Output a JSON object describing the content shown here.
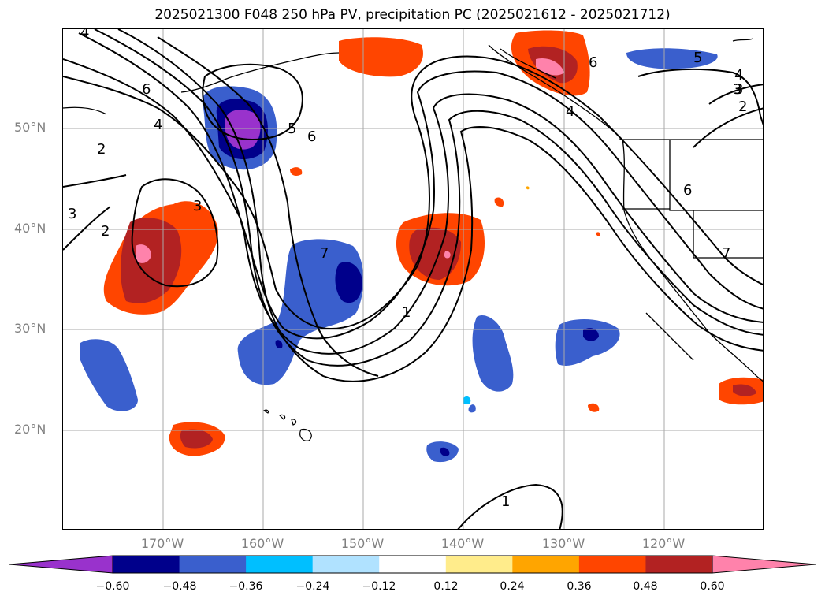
{
  "title": "2025021300 F048 250 hPa PV, precipitation PC (2025021612 - 2025021712)",
  "lat_labels": [
    "50°N",
    "40°N",
    "30°N",
    "20°N"
  ],
  "lon_labels": [
    "170°W",
    "160°W",
    "150°W",
    "140°W",
    "130°W",
    "120°W"
  ],
  "colorbar": {
    "ticks": [
      "−0.60",
      "−0.48",
      "−0.36",
      "−0.24",
      "−0.12",
      "0.12",
      "0.24",
      "0.36",
      "0.48",
      "0.60"
    ],
    "colors": [
      "#9932cc",
      "#00008b",
      "#3a5fcd",
      "#00bfff",
      "#b0e2ff",
      "#ffffff",
      "#ffec8b",
      "#ffa500",
      "#ff4500",
      "#b22222",
      "#ff82ab"
    ]
  },
  "contour_labels": [
    "4",
    "6",
    "4",
    "2",
    "3",
    "2",
    "3",
    "5",
    "6",
    "7",
    "1",
    "4",
    "3",
    "6",
    "5",
    "4",
    "3",
    "2",
    "6",
    "7",
    "1"
  ],
  "colors": {
    "grid": "#a9a9a9",
    "contour": "#000000",
    "axis_label": "#808080"
  }
}
